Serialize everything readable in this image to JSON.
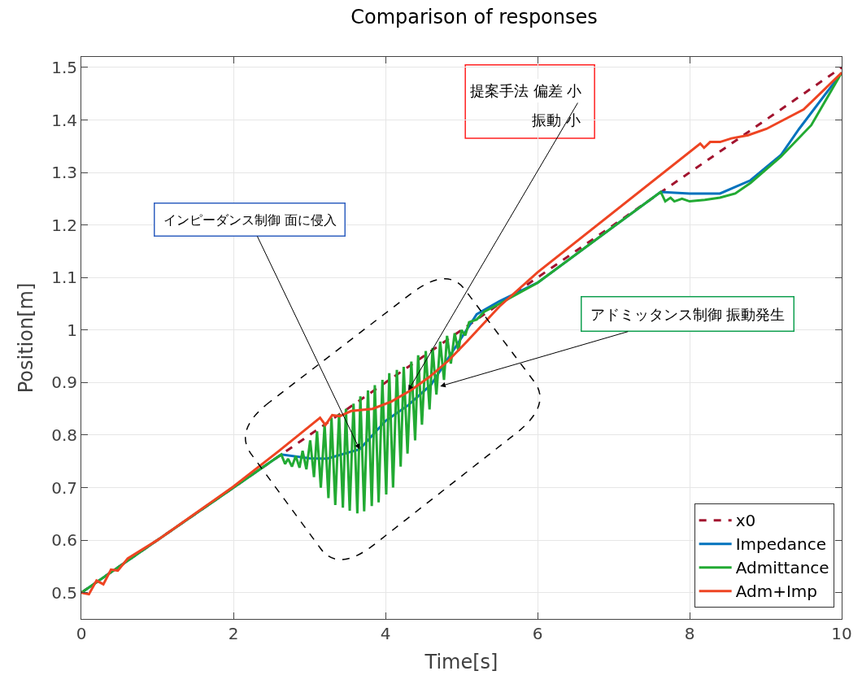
{
  "chart_data": {
    "type": "line",
    "title": "Comparison of responses",
    "xlabel": "Time[s]",
    "ylabel": "Position[m]",
    "xlim": [
      0,
      10
    ],
    "xticks": [
      0,
      2,
      4,
      6,
      8,
      10
    ],
    "ylim": [
      0.45,
      1.52
    ],
    "yticks": [
      0.5,
      0.6,
      0.7,
      0.8,
      0.9,
      {
        "value": 1.0,
        "label": "1"
      },
      1.1,
      1.2,
      1.3,
      1.4,
      1.5
    ],
    "grid": true,
    "legend": "bottom right",
    "series": [
      {
        "name": "x0",
        "color": "#a2142f",
        "line_style": "dashed",
        "x": [
          0,
          10
        ],
        "values": [
          0.5,
          1.5
        ]
      },
      {
        "name": "Impedance",
        "color": "#0072bd",
        "line_style": "solid",
        "x": [
          0,
          2.63,
          3.0,
          3.23,
          3.66,
          4.0,
          4.3,
          4.6,
          4.9,
          5.2,
          5.5,
          6.0,
          7.62,
          8.0,
          8.4,
          8.8,
          9.2,
          9.44,
          10
        ],
        "values": [
          0.5,
          0.763,
          0.756,
          0.755,
          0.773,
          0.827,
          0.857,
          0.896,
          0.963,
          1.03,
          1.055,
          1.09,
          1.263,
          1.26,
          1.26,
          1.285,
          1.333,
          1.383,
          1.49
        ]
      },
      {
        "name": "Admittance",
        "color": "#22aa33",
        "line_style": "solid",
        "x": [
          0,
          2.63,
          2.68,
          2.72,
          2.77,
          2.82,
          2.87,
          2.91,
          2.96,
          3.01,
          3.06,
          3.1,
          3.15,
          3.2,
          3.25,
          3.29,
          3.34,
          3.39,
          3.44,
          3.48,
          3.53,
          3.58,
          3.63,
          3.67,
          3.72,
          3.77,
          3.82,
          3.86,
          3.91,
          3.96,
          4.01,
          4.05,
          4.1,
          4.15,
          4.2,
          4.24,
          4.29,
          4.34,
          4.39,
          4.43,
          4.48,
          4.53,
          4.58,
          4.62,
          4.67,
          4.72,
          4.77,
          4.81,
          4.86,
          4.91,
          4.96,
          5.0,
          5.05,
          5.1,
          5.2,
          5.3,
          5.5,
          6.0,
          7.62,
          7.68,
          7.75,
          7.8,
          7.9,
          8.0,
          8.2,
          8.4,
          8.6,
          8.8,
          9.2,
          9.6,
          10
        ],
        "values": [
          0.5,
          0.763,
          0.745,
          0.755,
          0.74,
          0.76,
          0.738,
          0.77,
          0.735,
          0.79,
          0.72,
          0.807,
          0.7,
          0.82,
          0.68,
          0.833,
          0.667,
          0.84,
          0.662,
          0.85,
          0.656,
          0.86,
          0.651,
          0.874,
          0.655,
          0.885,
          0.665,
          0.895,
          0.672,
          0.905,
          0.687,
          0.918,
          0.7,
          0.924,
          0.74,
          0.93,
          0.765,
          0.94,
          0.79,
          0.952,
          0.82,
          0.96,
          0.849,
          0.966,
          0.877,
          0.978,
          0.905,
          0.989,
          0.936,
          0.994,
          0.96,
          1.0,
          0.99,
          1.015,
          1.02,
          1.035,
          1.05,
          1.09,
          1.263,
          1.245,
          1.252,
          1.245,
          1.25,
          1.245,
          1.248,
          1.252,
          1.26,
          1.28,
          1.33,
          1.39,
          1.49
        ]
      },
      {
        "name": "Adm+Imp",
        "color": "#ee4422",
        "line_style": "solid",
        "x": [
          0,
          0.1,
          0.2,
          0.29,
          0.39,
          0.48,
          0.61,
          1.0,
          2.0,
          2.6,
          3.14,
          3.21,
          3.3,
          3.4,
          3.55,
          3.83,
          4.08,
          4.33,
          4.58,
          4.83,
          5.07,
          5.5,
          6.0,
          8.14,
          8.19,
          8.27,
          8.4,
          8.55,
          8.77,
          9.01,
          9.5,
          10
        ],
        "values": [
          0.5,
          0.497,
          0.523,
          0.516,
          0.544,
          0.542,
          0.565,
          0.6,
          0.702,
          0.77,
          0.833,
          0.819,
          0.838,
          0.836,
          0.846,
          0.85,
          0.864,
          0.885,
          0.911,
          0.942,
          0.978,
          1.045,
          1.11,
          1.355,
          1.347,
          1.358,
          1.358,
          1.365,
          1.371,
          1.383,
          1.42,
          1.49
        ]
      }
    ],
    "annotations": [
      {
        "text": "インピーダンス制御 面に侵入",
        "x": 3.66,
        "y": 0.773
      },
      {
        "text": "提案手法 偏差 小",
        "x": 4.3,
        "y": 0.885
      },
      {
        "text": "アドミッタンス制御 振動発生",
        "x": 4.72,
        "y": 0.893
      },
      "振動 小"
    ]
  }
}
